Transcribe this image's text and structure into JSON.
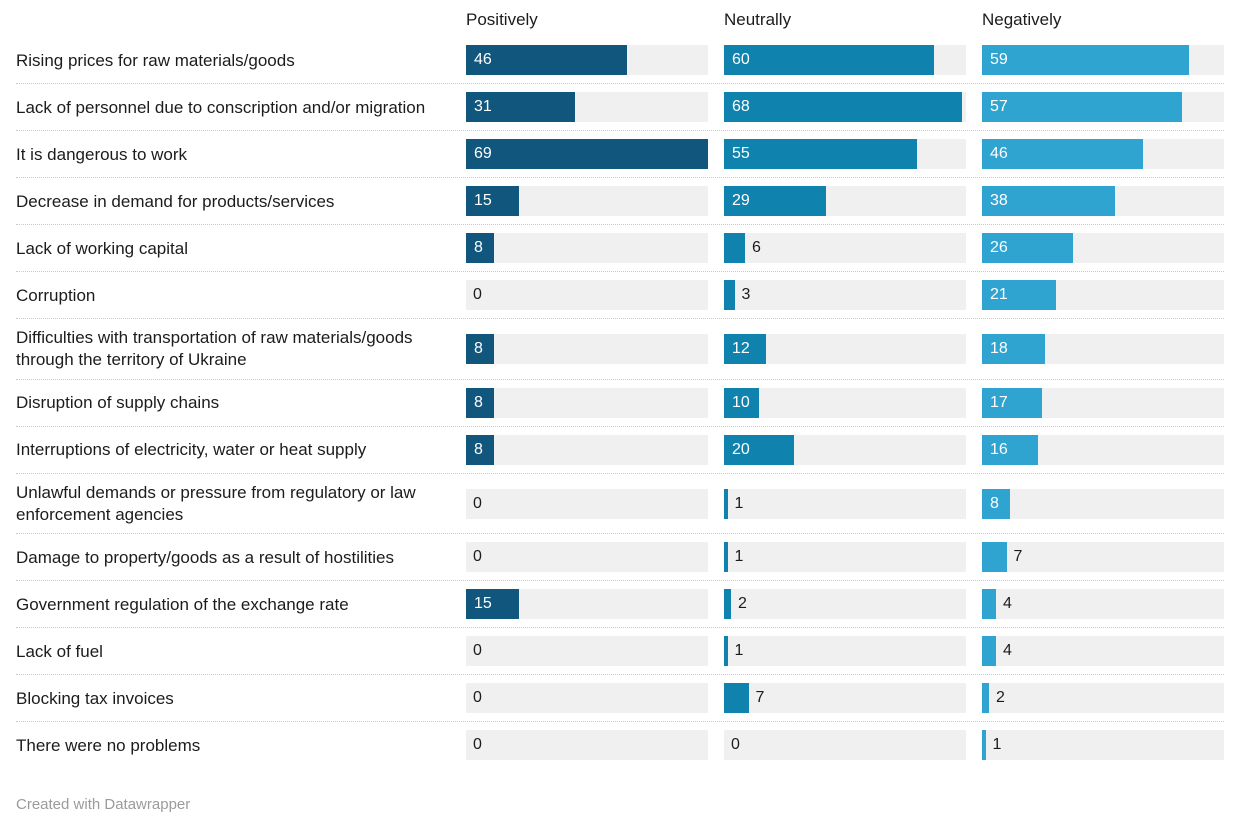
{
  "chart_data": {
    "type": "bar",
    "variant": "split-bars-horizontal",
    "title": "",
    "xlabel": "",
    "ylabel": "",
    "xmax": 69,
    "grid": false,
    "legend_position": "column-headers",
    "columns": [
      "Positively",
      "Neutrally",
      "Negatively"
    ],
    "categories": [
      "Rising prices for raw materials/goods",
      "Lack of personnel due to conscription and/or migration",
      "It is dangerous to work",
      "Decrease in demand for products/services",
      "Lack of working capital",
      "Corruption",
      "Difficulties with transportation of raw materials/goods through the territory of Ukraine",
      "Disruption of supply chains",
      "Interruptions of electricity, water or heat supply",
      "Unlawful demands or pressure from regulatory or law enforcement agencies",
      "Damage to property/goods as a result of hostilities",
      "Government regulation of the exchange rate",
      "Lack of fuel",
      "Blocking tax invoices",
      "There were no problems"
    ],
    "series": [
      {
        "name": "Positively",
        "color": "#11567c",
        "values": [
          46,
          31,
          69,
          15,
          8,
          0,
          8,
          8,
          8,
          0,
          0,
          15,
          0,
          0,
          0
        ]
      },
      {
        "name": "Neutrally",
        "color": "#0f82ad",
        "values": [
          60,
          68,
          55,
          29,
          6,
          3,
          12,
          10,
          20,
          1,
          1,
          2,
          1,
          7,
          0
        ]
      },
      {
        "name": "Negatively",
        "color": "#2fa4d1",
        "values": [
          59,
          57,
          46,
          38,
          26,
          21,
          18,
          17,
          16,
          8,
          7,
          4,
          4,
          2,
          1
        ]
      }
    ],
    "track_color": "#f0f0f0",
    "footer": "Created with Datawrapper"
  }
}
